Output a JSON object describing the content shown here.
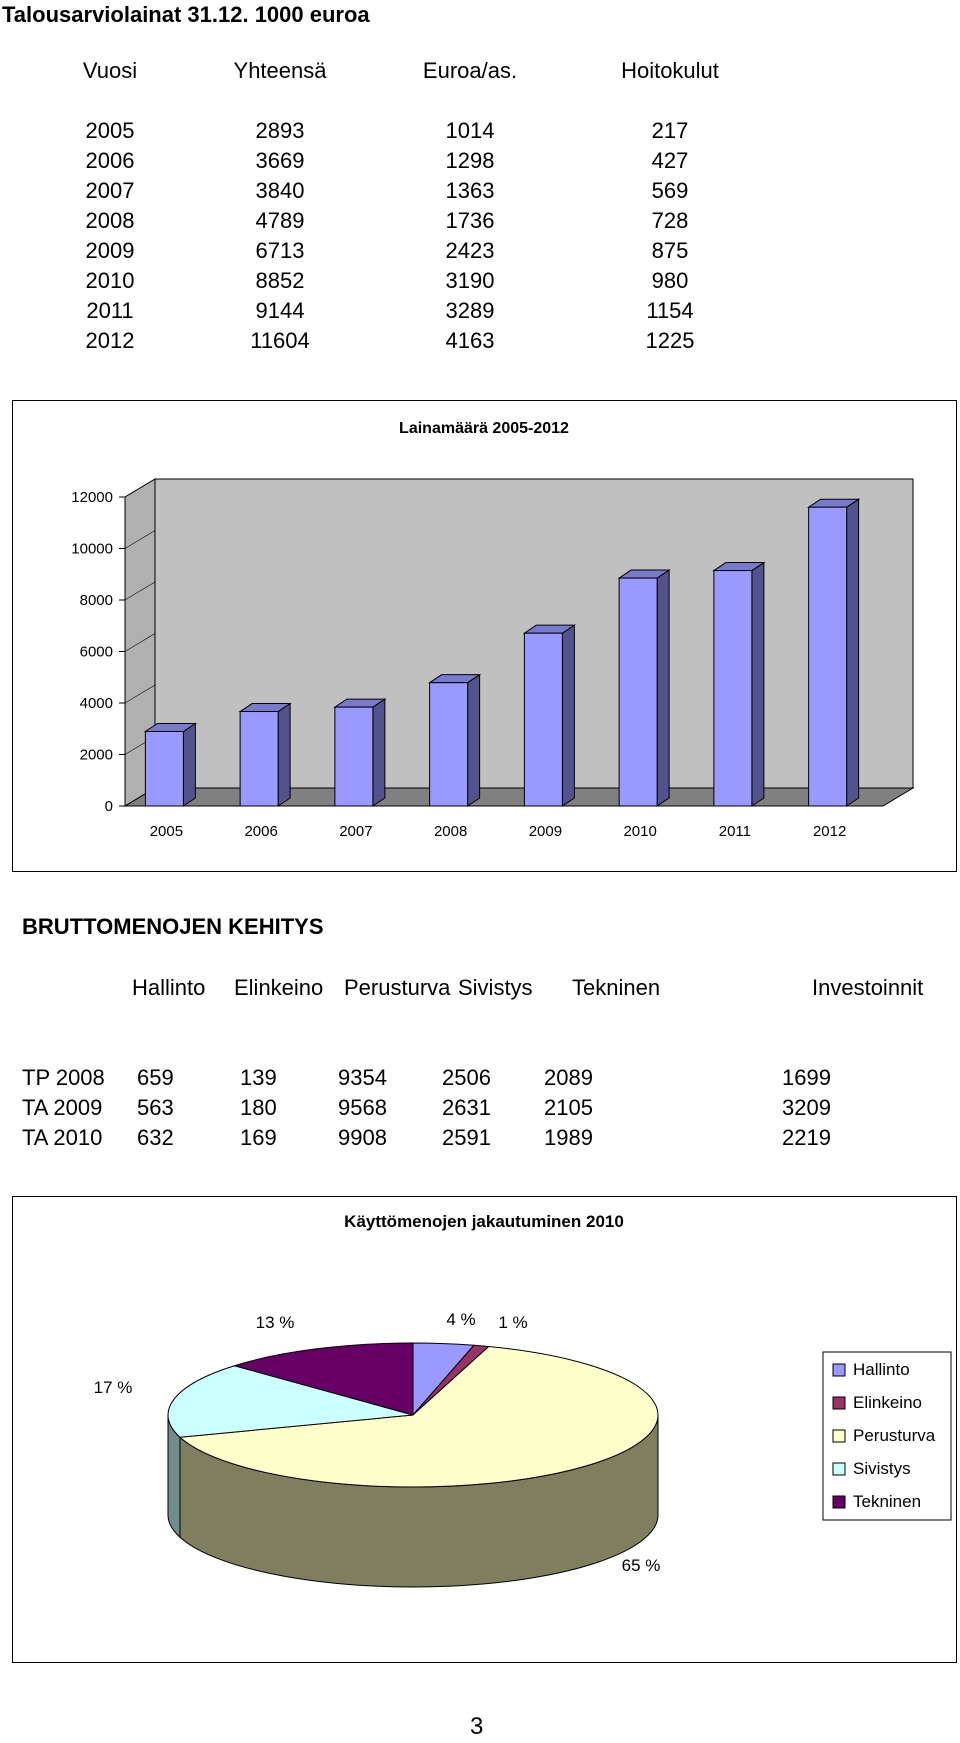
{
  "title": "Talousarviolainat 31.12. 1000 euroa",
  "loans_table": {
    "headers": [
      "Vuosi",
      "Yhteensä",
      "Euroa/as.",
      "Hoitokulut"
    ],
    "rows": [
      [
        "2005",
        "2893",
        "1014",
        "217"
      ],
      [
        "2006",
        "3669",
        "1298",
        "427"
      ],
      [
        "2007",
        "3840",
        "1363",
        "569"
      ],
      [
        "2008",
        "4789",
        "1736",
        "728"
      ],
      [
        "2009",
        "6713",
        "2423",
        "875"
      ],
      [
        "2010",
        "8852",
        "3190",
        "980"
      ],
      [
        "2011",
        "9144",
        "3289",
        "1154"
      ],
      [
        "2012",
        "11604",
        "4163",
        "1225"
      ]
    ]
  },
  "section2_title": "BRUTTOMENOJEN  KEHITYS",
  "expenses_table": {
    "headers": [
      "Hallinto",
      "Elinkeino",
      "Perusturva",
      "Sivistys",
      "Tekninen",
      "Investoinnit"
    ],
    "rows": [
      [
        "TP 2008",
        "659",
        "139",
        "9354",
        "2506",
        "2089",
        "1699"
      ],
      [
        "TA 2009",
        "563",
        "180",
        "9568",
        "2631",
        "2105",
        "3209"
      ],
      [
        "TA 2010",
        "632",
        "169",
        "9908",
        "2591",
        "1989",
        "2219"
      ]
    ]
  },
  "page_number": "3",
  "chart_data": [
    {
      "type": "bar",
      "title": "Lainamäärä 2005-2012",
      "categories": [
        "2005",
        "2006",
        "2007",
        "2008",
        "2009",
        "2010",
        "2011",
        "2012"
      ],
      "values": [
        2893,
        3669,
        3840,
        4789,
        6713,
        8852,
        9144,
        11604
      ],
      "ylim": [
        0,
        12000
      ],
      "yticks": [
        "0",
        "2000",
        "4000",
        "6000",
        "8000",
        "10000",
        "12000"
      ],
      "grid": false,
      "three_d": true,
      "colors": {
        "bar_front": "#9999ff",
        "bar_side": "#52528c",
        "bar_top": "#7a7acc",
        "wall": "#c0c0c0",
        "floor": "#808080"
      }
    },
    {
      "type": "pie",
      "title": "Käyttömenojen jakautuminen 2010",
      "three_d": true,
      "legend": "right",
      "slices": [
        {
          "name": "Hallinto",
          "value": 4,
          "label": "4 %",
          "color": "#9999ff"
        },
        {
          "name": "Elinkeino",
          "value": 1,
          "label": "1 %",
          "color": "#993366"
        },
        {
          "name": "Perusturva",
          "value": 65,
          "label": "65 %",
          "color": "#ffffcc"
        },
        {
          "name": "Sivistys",
          "value": 17,
          "label": "17 %",
          "color": "#ccffff"
        },
        {
          "name": "Tekninen",
          "value": 13,
          "label": "13 %",
          "color": "#660066"
        }
      ]
    }
  ]
}
